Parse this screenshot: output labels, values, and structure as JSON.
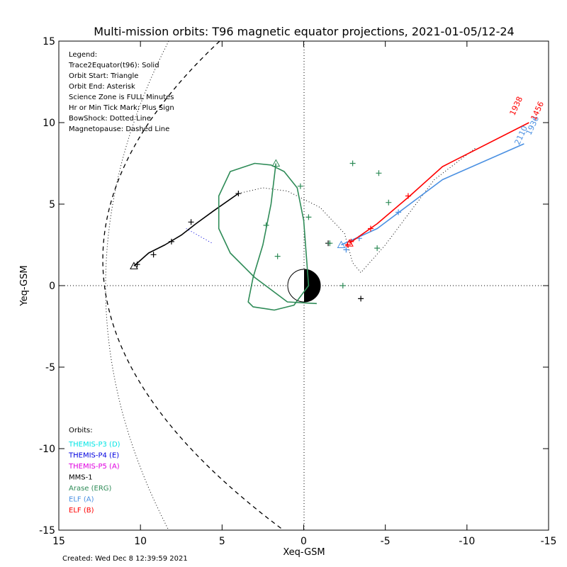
{
  "chart_data": {
    "type": "scatter",
    "title": "Multi-mission orbits: T96 magnetic equator projections, 2021-01-05/12-24",
    "xlabel": "Xeq-GSM",
    "ylabel": "Yeq-GSM",
    "xlim": [
      15,
      -15
    ],
    "ylim": [
      15,
      -15
    ],
    "x_ticks": [
      {
        "value": 15,
        "label": "15"
      },
      {
        "value": 10,
        "label": "10"
      },
      {
        "value": 5,
        "label": "5"
      },
      {
        "value": 0,
        "label": "0"
      },
      {
        "value": -5,
        "label": "-5"
      },
      {
        "value": -10,
        "label": "-10"
      },
      {
        "value": -15,
        "label": "-15"
      }
    ],
    "y_ticks": [
      {
        "value": -15,
        "label": "-15"
      },
      {
        "value": -10,
        "label": "-10"
      },
      {
        "value": -5,
        "label": "-5"
      },
      {
        "value": 0,
        "label": "0"
      },
      {
        "value": 5,
        "label": "5"
      },
      {
        "value": 10,
        "label": "10"
      },
      {
        "value": 15,
        "label": "15"
      }
    ],
    "grid": "dotted zero lines",
    "legend_lines": [
      "Legend:",
      "Trace2Equator(t96): Solid",
      "Orbit Start: Triangle",
      "Orbit End: Asterisk",
      "Science Zone is FULL Minutes",
      "Hr or Min Tick Mark: Plus Sign",
      "BowShock: Dotted Line",
      "Magnetopause: Dashed Line"
    ],
    "orbits_heading": "Orbits:",
    "orbits_legend": [
      {
        "name": "THEMIS-P3 (D)",
        "color": "#00e5e5"
      },
      {
        "name": "THEMIS-P4 (E)",
        "color": "#0000e0"
      },
      {
        "name": "THEMIS-P5 (A)",
        "color": "#e000e0"
      },
      {
        "name": "MMS-1",
        "color": "#000000"
      },
      {
        "name": "Arase (ERG)",
        "color": "#2e8b57"
      },
      {
        "name": "ELF (A)",
        "color": "#4a90e2"
      },
      {
        "name": "ELF (B)",
        "color": "#ff0000"
      }
    ],
    "series": [
      {
        "name": "MMS-1",
        "color": "#000000",
        "style": "solid",
        "points": [
          [
            10.4,
            1.2
          ],
          [
            9.5,
            2.0
          ],
          [
            8.5,
            2.5
          ],
          [
            7.5,
            3.1
          ],
          [
            6.6,
            3.8
          ],
          [
            5.5,
            4.6
          ],
          [
            4.0,
            5.65
          ]
        ],
        "ticks": [
          [
            10.2,
            1.3
          ],
          [
            9.2,
            1.9
          ],
          [
            8.1,
            2.7
          ],
          [
            6.9,
            3.9
          ],
          [
            4.0,
            5.65
          ]
        ]
      },
      {
        "name": "MMS-1 trace (dotted)",
        "color": "#000000",
        "style": "dotted",
        "points": [
          [
            4.0,
            5.65
          ],
          [
            2.5,
            6.0
          ],
          [
            1.0,
            5.8
          ],
          [
            -1.0,
            4.8
          ],
          [
            -2.5,
            3.2
          ],
          [
            -3.0,
            1.4
          ],
          [
            -3.5,
            0.8
          ],
          [
            -5.0,
            2.5
          ],
          [
            -6.5,
            4.5
          ],
          [
            -8.0,
            6.5
          ],
          [
            -10.6,
            8.5
          ]
        ],
        "ticks": [
          [
            -1.5,
            2.6
          ],
          [
            -3.5,
            -0.8
          ]
        ]
      },
      {
        "name": "THEMIS-P4 (E) segment",
        "color": "#0000e0",
        "style": "dotted",
        "points": [
          [
            7.2,
            3.5
          ],
          [
            5.6,
            2.6
          ]
        ]
      },
      {
        "name": "Arase (ERG)",
        "color": "#2e8b57",
        "style": "solid",
        "points": [
          [
            1.7,
            7.5
          ],
          [
            2.0,
            5.0
          ],
          [
            2.5,
            2.5
          ],
          [
            3.1,
            0.5
          ],
          [
            3.4,
            -1.0
          ],
          [
            3.1,
            -1.3
          ],
          [
            1.8,
            -1.5
          ],
          [
            0.6,
            -1.2
          ],
          [
            -0.3,
            0.0
          ],
          [
            0.0,
            4.0
          ],
          [
            0.4,
            6.0
          ],
          [
            1.2,
            7.0
          ],
          [
            2.0,
            7.4
          ],
          [
            3.0,
            7.5
          ],
          [
            4.5,
            7.0
          ],
          [
            5.2,
            5.5
          ],
          [
            5.2,
            3.5
          ],
          [
            4.5,
            2.0
          ],
          [
            3.0,
            0.5
          ],
          [
            1.0,
            -1.0
          ],
          [
            -0.8,
            -1.1
          ]
        ],
        "ticks": [
          [
            2.3,
            3.7
          ],
          [
            1.6,
            1.8
          ],
          [
            0.2,
            6.1
          ],
          [
            -0.3,
            4.2
          ],
          [
            -1.6,
            2.6
          ],
          [
            -2.4,
            0.0
          ],
          [
            -3.0,
            7.5
          ],
          [
            -4.6,
            6.9
          ],
          [
            -5.2,
            5.1
          ],
          [
            -4.5,
            2.3
          ]
        ]
      },
      {
        "name": "ELF (A)",
        "color": "#4a90e2",
        "style": "solid",
        "points": [
          [
            -2.3,
            2.5
          ],
          [
            -4.5,
            3.5
          ],
          [
            -6.5,
            5.0
          ],
          [
            -8.5,
            6.5
          ],
          [
            -13.5,
            8.7
          ]
        ],
        "ticks": [
          [
            -2.6,
            2.2
          ],
          [
            -3.4,
            2.9
          ],
          [
            -5.8,
            4.5
          ]
        ]
      },
      {
        "name": "ELF (B)",
        "color": "#ff0000",
        "style": "solid",
        "points": [
          [
            -2.8,
            2.6
          ],
          [
            -4.5,
            3.8
          ],
          [
            -6.5,
            5.5
          ],
          [
            -8.5,
            7.3
          ],
          [
            -13.8,
            10.0
          ]
        ],
        "ticks": [
          [
            -2.7,
            2.5
          ],
          [
            -2.9,
            2.7
          ],
          [
            -4.1,
            3.5
          ],
          [
            -6.4,
            5.5
          ]
        ]
      }
    ],
    "orbit_end_labels": [
      {
        "text": "2110",
        "color": "#4a90e2",
        "x": -13.2,
        "y": 8.6
      },
      {
        "text": "1936",
        "color": "#4a90e2",
        "x": -13.9,
        "y": 9.2
      },
      {
        "text": "1938",
        "color": "#ff0000",
        "x": -12.9,
        "y": 10.4
      },
      {
        "text": "1456",
        "color": "#ff0000",
        "x": -14.2,
        "y": 10.1
      }
    ]
  },
  "footer": {
    "created": "Created: Wed Dec  8 12:39:59 2021"
  }
}
